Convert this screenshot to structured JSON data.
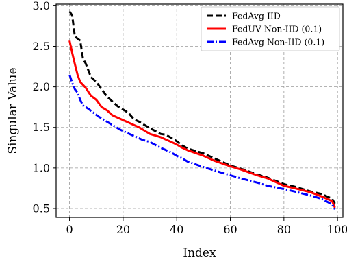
{
  "chart_data": {
    "type": "line",
    "title": "",
    "xlabel": "Index",
    "ylabel": "Singular Value",
    "xlim": [
      -5,
      102
    ],
    "ylim": [
      0.39,
      3.02
    ],
    "xticks": [
      0,
      20,
      40,
      60,
      80,
      100
    ],
    "yticks": [
      0.5,
      1.0,
      1.5,
      2.0,
      2.5,
      3.0
    ],
    "xtick_labels": [
      "0",
      "20",
      "40",
      "60",
      "80",
      "100"
    ],
    "ytick_labels": [
      "0.5",
      "1.0",
      "1.5",
      "2.0",
      "2.5",
      "3.0"
    ],
    "grid": true,
    "legend_position": "top-right",
    "series": [
      {
        "name": "FedAvg IID",
        "color": "#000000",
        "dash": "dashed",
        "x": [
          0,
          1,
          2,
          4,
          5,
          6,
          8,
          10,
          12,
          14,
          16,
          18,
          20,
          22,
          24,
          26,
          28,
          30,
          34,
          36,
          38,
          40,
          42,
          44,
          50,
          54,
          60,
          64,
          70,
          74,
          80,
          84,
          90,
          94,
          98,
          99
        ],
        "y": [
          2.93,
          2.88,
          2.62,
          2.57,
          2.35,
          2.29,
          2.12,
          2.06,
          1.97,
          1.88,
          1.82,
          1.76,
          1.72,
          1.68,
          1.6,
          1.57,
          1.53,
          1.49,
          1.42,
          1.41,
          1.37,
          1.33,
          1.28,
          1.24,
          1.18,
          1.12,
          1.03,
          0.99,
          0.92,
          0.88,
          0.8,
          0.77,
          0.71,
          0.68,
          0.62,
          0.56
        ]
      },
      {
        "name": "FedUV Non-IID (0.1)",
        "color": "#ff0000",
        "dash": "solid",
        "x": [
          0,
          1,
          2,
          3,
          4,
          6,
          8,
          10,
          12,
          14,
          16,
          18,
          20,
          22,
          24,
          26,
          28,
          30,
          34,
          36,
          38,
          40,
          42,
          44,
          50,
          54,
          60,
          64,
          70,
          74,
          80,
          84,
          90,
          94,
          98,
          99
        ],
        "y": [
          2.57,
          2.42,
          2.28,
          2.15,
          2.06,
          1.99,
          1.89,
          1.84,
          1.75,
          1.71,
          1.65,
          1.62,
          1.59,
          1.56,
          1.53,
          1.5,
          1.46,
          1.42,
          1.38,
          1.35,
          1.32,
          1.29,
          1.25,
          1.22,
          1.15,
          1.09,
          1.02,
          0.98,
          0.91,
          0.87,
          0.78,
          0.75,
          0.7,
          0.65,
          0.59,
          0.51
        ]
      },
      {
        "name": "FedAvg Non-IID (0.1)",
        "color": "#0000ff",
        "dash": "dashdot",
        "x": [
          0,
          1,
          2,
          3,
          4,
          5,
          7,
          9,
          11,
          13,
          15,
          17,
          19,
          21,
          23,
          25,
          27,
          30,
          34,
          36,
          38,
          40,
          42,
          44,
          50,
          54,
          60,
          64,
          70,
          74,
          80,
          84,
          90,
          94,
          98,
          99
        ],
        "y": [
          2.15,
          2.05,
          1.97,
          1.93,
          1.84,
          1.77,
          1.73,
          1.68,
          1.63,
          1.59,
          1.55,
          1.51,
          1.47,
          1.44,
          1.41,
          1.38,
          1.35,
          1.32,
          1.25,
          1.22,
          1.19,
          1.15,
          1.12,
          1.08,
          1.01,
          0.97,
          0.91,
          0.87,
          0.82,
          0.78,
          0.74,
          0.71,
          0.66,
          0.62,
          0.55,
          0.49
        ]
      }
    ]
  }
}
